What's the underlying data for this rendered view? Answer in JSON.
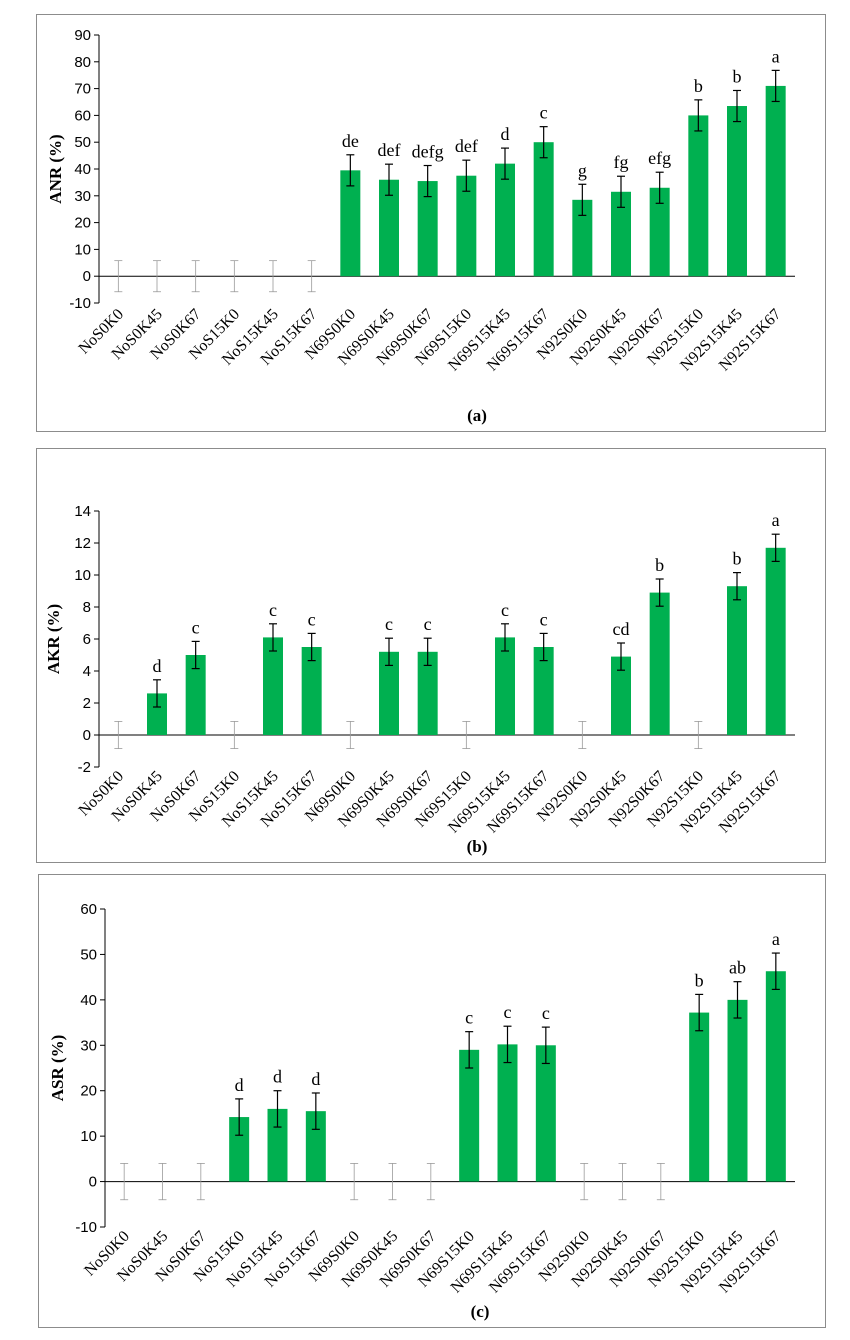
{
  "chart_data": [
    {
      "type": "bar",
      "ylabel": "ANR (%)",
      "caption": "(a)",
      "ylim": [
        -10,
        90
      ],
      "yticks": [
        -10,
        0,
        10,
        20,
        30,
        40,
        50,
        60,
        70,
        80,
        90
      ],
      "bar_color": "#00b050",
      "categories": [
        "NoS0K0",
        "NoS0K45",
        "NoS0K67",
        "NoS15K0",
        "NoS15K45",
        "NoS15K67",
        "N69S0K0",
        "N69S0K45",
        "N69S0K67",
        "N69S15K0",
        "N69S15K45",
        "N69S15K67",
        "N92S0K0",
        "N92S0K45",
        "N92S0K67",
        "N92S15K0",
        "N92S15K45",
        "N92S15K67"
      ],
      "values": [
        0,
        0,
        0,
        0,
        0,
        0,
        39.5,
        36,
        35.5,
        37.5,
        42,
        50,
        28.5,
        31.5,
        33,
        60,
        63.5,
        71
      ],
      "errors": [
        5.8,
        5.8,
        5.8,
        5.8,
        5.8,
        5.8,
        5.8,
        5.8,
        5.8,
        5.8,
        5.8,
        5.8,
        5.8,
        5.8,
        5.8,
        5.8,
        5.8,
        5.8
      ],
      "letters": [
        "",
        "",
        "",
        "",
        "",
        "",
        "de",
        "def",
        "defg",
        "def",
        "d",
        "c",
        "g",
        "fg",
        "efg",
        "b",
        "b",
        "a"
      ]
    },
    {
      "type": "bar",
      "ylabel": "AKR (%)",
      "caption": "(b)",
      "ylim": [
        -2,
        14
      ],
      "yticks": [
        -2,
        0,
        2,
        4,
        6,
        8,
        10,
        12,
        14
      ],
      "bar_color": "#00b050",
      "categories": [
        "NoS0K0",
        "NoS0K45",
        "NoS0K67",
        "NoS15K0",
        "NoS15K45",
        "NoS15K67",
        "N69S0K0",
        "N69S0K45",
        "N69S0K67",
        "N69S15K0",
        "N69S15K45",
        "N69S15K67",
        "N92S0K0",
        "N92S0K45",
        "N92S0K67",
        "N92S15K0",
        "N92S15K45",
        "N92S15K67"
      ],
      "values": [
        0,
        2.6,
        5.0,
        0,
        6.1,
        5.5,
        0,
        5.2,
        5.2,
        0,
        6.1,
        5.5,
        0,
        4.9,
        8.9,
        0,
        9.3,
        11.7
      ],
      "errors": [
        0.85,
        0.85,
        0.85,
        0.85,
        0.85,
        0.85,
        0.85,
        0.85,
        0.85,
        0.85,
        0.85,
        0.85,
        0.85,
        0.85,
        0.85,
        0.85,
        0.85,
        0.85
      ],
      "letters": [
        "",
        "d",
        "c",
        "",
        "c",
        "c",
        "",
        "c",
        "c",
        "",
        "c",
        "c",
        "",
        "cd",
        "b",
        "",
        "b",
        "a"
      ]
    },
    {
      "type": "bar",
      "ylabel": "ASR (%)",
      "caption": "(c)",
      "ylim": [
        -10,
        60
      ],
      "yticks": [
        -10,
        0,
        10,
        20,
        30,
        40,
        50,
        60
      ],
      "bar_color": "#00b050",
      "categories": [
        "NoS0K0",
        "NoS0K45",
        "NoS0K67",
        "NoS15K0",
        "NoS15K45",
        "NoS15K67",
        "N69S0K0",
        "N69S0K45",
        "N69S0K67",
        "N69S15K0",
        "N69S15K45",
        "N69S15K67",
        "N92S0K0",
        "N92S0K45",
        "N92S0K67",
        "N92S15K0",
        "N92S15K45",
        "N92S15K67"
      ],
      "values": [
        0,
        0,
        0,
        14.2,
        16,
        15.5,
        0,
        0,
        0,
        29,
        30.2,
        30,
        0,
        0,
        0,
        37.2,
        40,
        46.3
      ],
      "errors": [
        4,
        4,
        4,
        4,
        4,
        4,
        4,
        4,
        4,
        4,
        4,
        4,
        4,
        4,
        4,
        4,
        4,
        4
      ],
      "letters": [
        "",
        "",
        "",
        "d",
        "d",
        "d",
        "",
        "",
        "",
        "c",
        "c",
        "c",
        "",
        "",
        "",
        "b",
        "ab",
        "a"
      ]
    }
  ]
}
